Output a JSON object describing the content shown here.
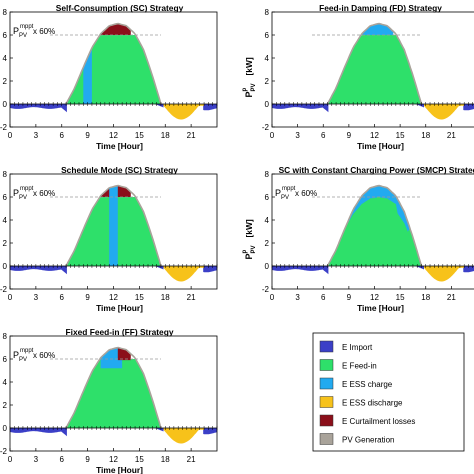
{
  "chart_data": [
    {
      "type": "area",
      "title": "Self-Consumption (SC) Strategy",
      "xlabel": "Time [Hour]",
      "ylabel": "",
      "xlim": [
        0,
        24
      ],
      "ylim": [
        -2,
        8
      ],
      "xticks": [
        0,
        3,
        6,
        9,
        12,
        15,
        18,
        21
      ],
      "yticks": [
        -2,
        0,
        2,
        4,
        6,
        8
      ],
      "limit_label": "x 60%",
      "limit_value": 6,
      "pv_profile": {
        "x": [
          6.5,
          7.5,
          8.5,
          9.5,
          10.5,
          11.5,
          12.5,
          13.5,
          14.5,
          15.5,
          16.5,
          17.5
        ],
        "y": [
          0,
          1.4,
          3.2,
          4.9,
          6.1,
          6.8,
          7.0,
          6.8,
          6.1,
          4.7,
          2.5,
          0
        ]
      },
      "import_depth": [
        -0.4,
        -0.6,
        -0.45,
        -0.5
      ],
      "regions": [
        {
          "name": "E ESS charge",
          "from": 8.5,
          "to": 9.5
        },
        {
          "name": "E Curtailment losses",
          "from": 10.5,
          "to": 14.0
        },
        {
          "name": "E ESS discharge",
          "from": 17.8,
          "to": 22.5
        }
      ]
    },
    {
      "type": "area",
      "title": "Feed-in Damping (FD) Strategy",
      "xlabel": "Time [Hour]",
      "ylabel": "P_PV^p [kW]",
      "xlim": [
        0,
        24
      ],
      "ylim": [
        -2,
        8
      ],
      "xticks": [
        0,
        3,
        6,
        9,
        12,
        15,
        18,
        21
      ],
      "yticks": [
        -2,
        0,
        2,
        4,
        6,
        8
      ],
      "limit_value": 6,
      "regions": [
        {
          "name": "E ESS charge",
          "from": 10.3,
          "to": 14.2
        },
        {
          "name": "E ESS discharge",
          "from": 17.8,
          "to": 22.5
        }
      ]
    },
    {
      "type": "area",
      "title": "Schedule Mode (SC) Strategy",
      "xlabel": "Time [Hour]",
      "ylabel": "",
      "xlim": [
        0,
        24
      ],
      "ylim": [
        -2,
        8
      ],
      "xticks": [
        0,
        3,
        6,
        9,
        12,
        15,
        18,
        21
      ],
      "yticks": [
        -2,
        0,
        2,
        4,
        6,
        8
      ],
      "limit_label": "x 60%",
      "limit_value": 6,
      "regions": [
        {
          "name": "E ESS charge",
          "from": 11.5,
          "to": 12.5
        },
        {
          "name": "E Curtailment losses",
          "from": 10.5,
          "to": 14.0
        },
        {
          "name": "E ESS discharge",
          "from": 17.8,
          "to": 22.5
        }
      ]
    },
    {
      "type": "area",
      "title": "SC with Constant Charging Power (SMCP) Strategy",
      "xlabel": "Time [Hour]",
      "ylabel": "P_PV^p [kW]",
      "xlim": [
        0,
        24
      ],
      "ylim": [
        -2,
        8
      ],
      "xticks": [
        0,
        3,
        6,
        9,
        12,
        15,
        18,
        21
      ],
      "yticks": [
        -2,
        0,
        2,
        4,
        6,
        8
      ],
      "limit_label": "x 60%",
      "limit_value": 6,
      "regions": [
        {
          "name": "E ESS charge",
          "from": 8.5,
          "to": 16.5
        },
        {
          "name": "E ESS discharge",
          "from": 17.8,
          "to": 22.5
        }
      ]
    },
    {
      "type": "area",
      "title": "Fixed Feed-in (FF) Strategy",
      "xlabel": "Time [Hour]",
      "ylabel": "",
      "xlim": [
        0,
        24
      ],
      "ylim": [
        -2,
        8
      ],
      "xticks": [
        0,
        3,
        6,
        9,
        12,
        15,
        18,
        21
      ],
      "yticks": [
        -2,
        0,
        2,
        4,
        6,
        8
      ],
      "limit_label": "x 60%",
      "limit_value": 6,
      "regions": [
        {
          "name": "E ESS charge",
          "from": 10.5,
          "to": 13.0
        },
        {
          "name": "E Curtailment losses",
          "from": 12.5,
          "to": 14.0
        },
        {
          "name": "E ESS discharge",
          "from": 17.8,
          "to": 22.5
        }
      ]
    }
  ],
  "legend": [
    {
      "label": "E Import",
      "color": "#3b3fc7"
    },
    {
      "label": "E Feed-in",
      "color": "#2ee06a"
    },
    {
      "label": "E ESS charge",
      "color": "#22aaf0"
    },
    {
      "label": "E ESS discharge",
      "color": "#f7c21a"
    },
    {
      "label": "E Curtailment losses",
      "color": "#8b0f1a"
    },
    {
      "label": "PV Generation",
      "color": "#a9a39a"
    }
  ],
  "labels": {
    "pv_symbol": "P",
    "pv_sub": "PV",
    "pv_sup": "mppt",
    "ylabel_sym": "P",
    "ylabel_sub": "PV",
    "ylabel_sup": "p",
    "ylabel_unit": "[kW]"
  }
}
